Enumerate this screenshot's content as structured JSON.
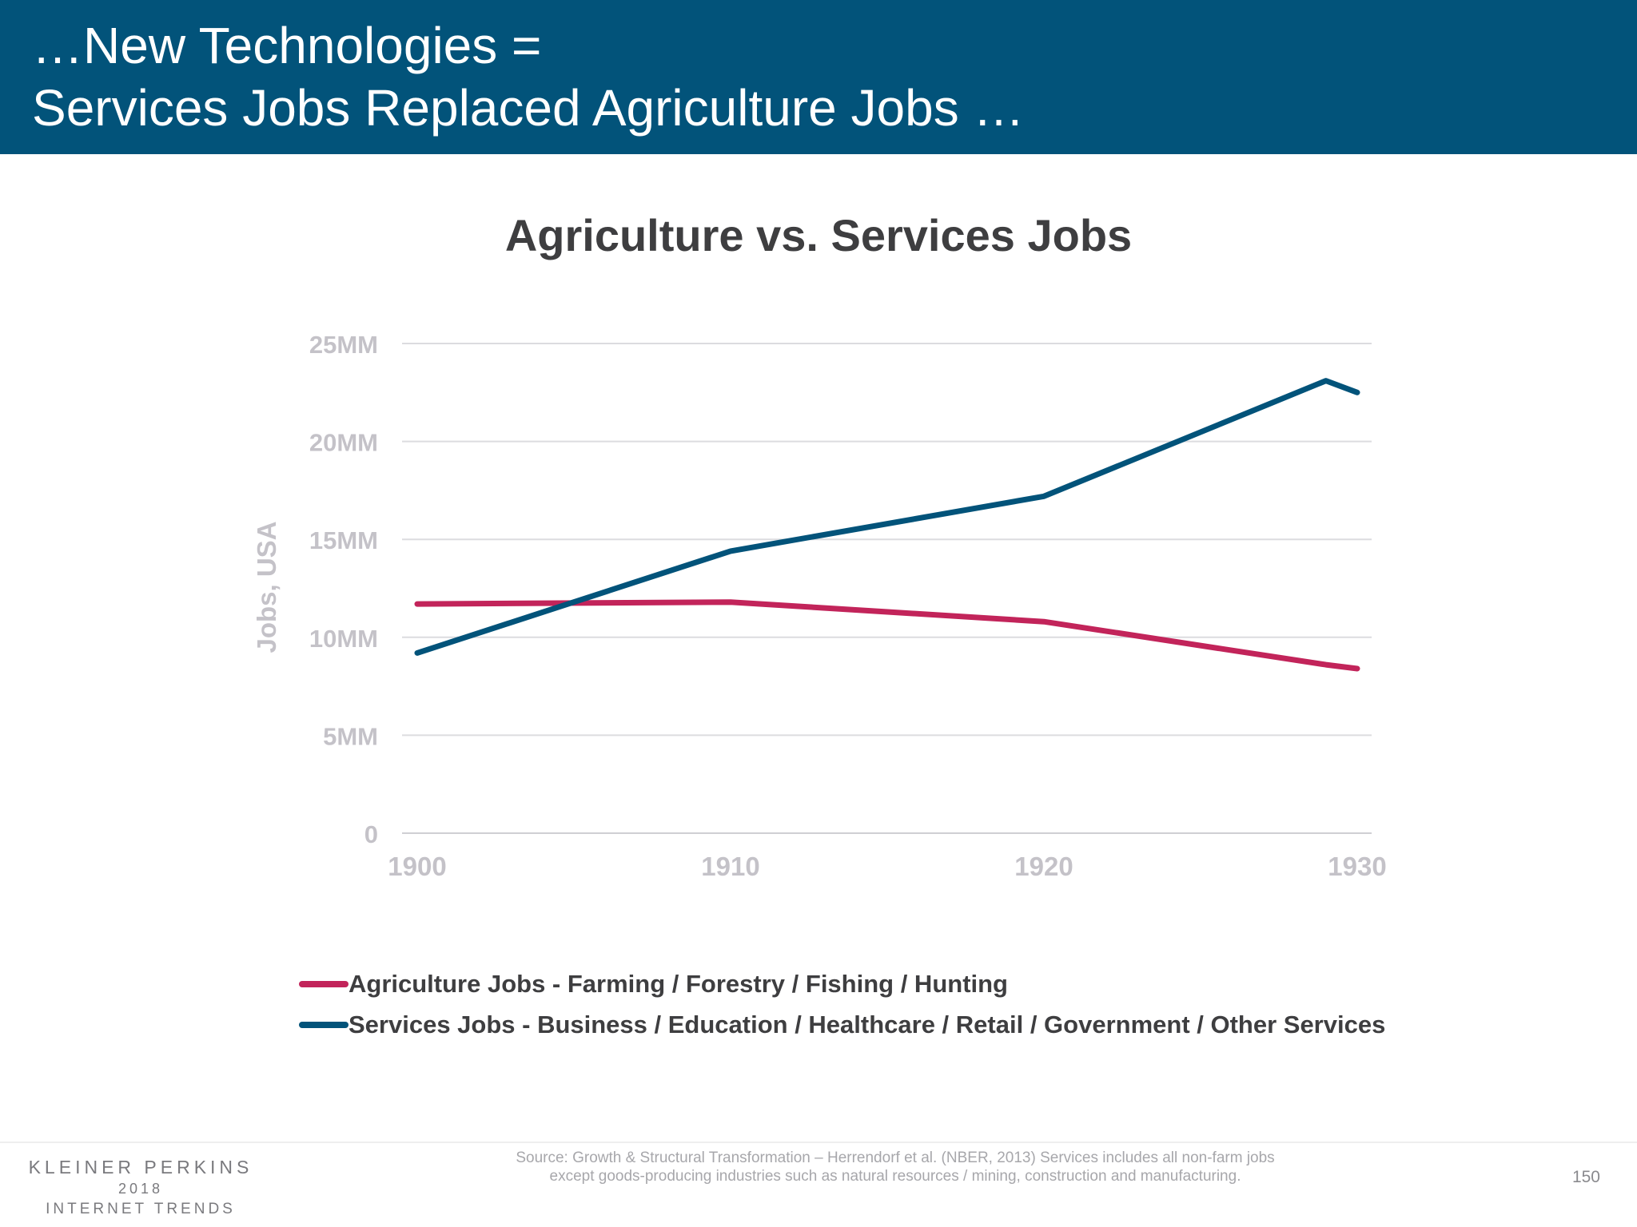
{
  "header": {
    "line1": "…New Technologies =",
    "line2": "Services Jobs Replaced Agriculture Jobs …"
  },
  "chart_data": {
    "type": "line",
    "title": "Agriculture vs. Services Jobs",
    "xlabel": "",
    "ylabel": "Jobs, USA",
    "xlim": [
      1900,
      1930
    ],
    "ylim": [
      0,
      25
    ],
    "x_ticks": [
      1900,
      1910,
      1920,
      1930
    ],
    "x_tick_labels": [
      "1900",
      "1910",
      "1920",
      "1930"
    ],
    "y_ticks": [
      0,
      5,
      10,
      15,
      20,
      25
    ],
    "y_tick_labels": [
      "0",
      "5MM",
      "10MM",
      "15MM",
      "20MM",
      "25MM"
    ],
    "grid": true,
    "legend_position": "bottom-left",
    "series": [
      {
        "name": "Agriculture Jobs - Farming / Forestry / Fishing / Hunting",
        "color": "#c2245a",
        "x": [
          1900,
          1910,
          1920,
          1929,
          1930
        ],
        "values": [
          11.7,
          11.8,
          10.8,
          8.6,
          8.4
        ]
      },
      {
        "name": "Services Jobs - Business / Education / Healthcare / Retail / Government / Other Services",
        "color": "#02537a",
        "x": [
          1900,
          1910,
          1920,
          1929,
          1930
        ],
        "values": [
          9.2,
          14.4,
          17.2,
          23.1,
          22.5
        ]
      }
    ]
  },
  "footer": {
    "logo_firm": "KLEINER PERKINS",
    "logo_year": "2018",
    "logo_report": "INTERNET TRENDS",
    "source_line1": "Source: Growth & Structural Transformation – Herrendorf et al. (NBER, 2013)  Services includes all non-farm jobs",
    "source_line2": "except goods-producing industries such as natural resources / mining, construction and manufacturing.",
    "page_number": "150"
  }
}
